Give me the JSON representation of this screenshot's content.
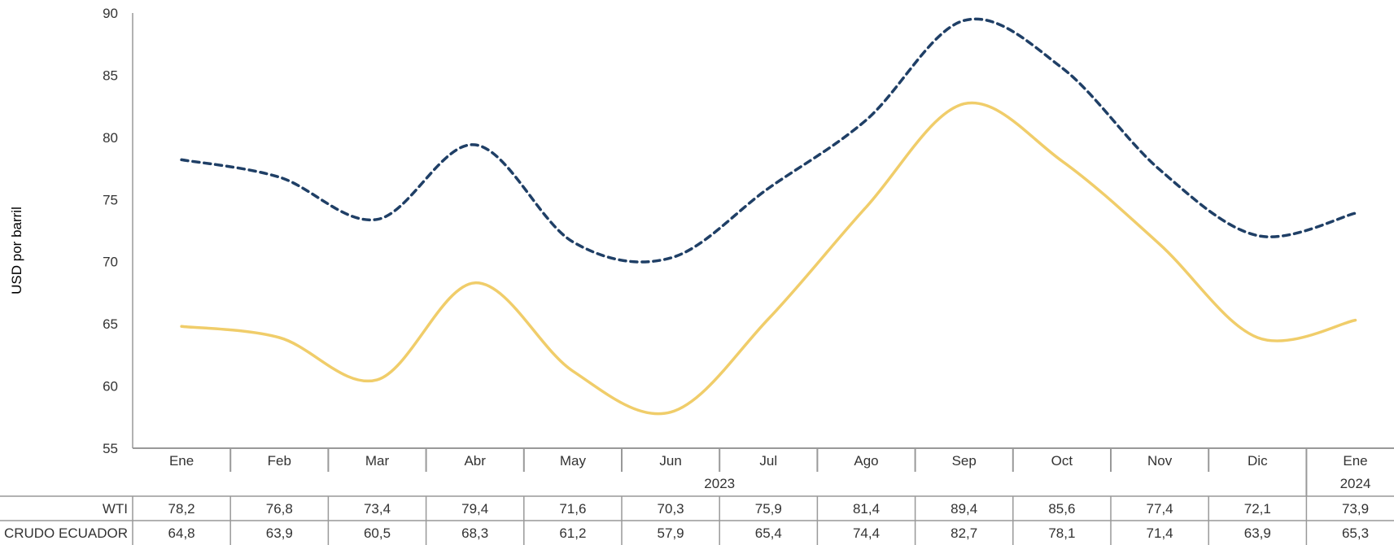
{
  "chart_data": {
    "type": "line",
    "ylabel": "USD por barril",
    "ylim": [
      55,
      90
    ],
    "yticks": [
      55,
      60,
      65,
      70,
      75,
      80,
      85,
      90
    ],
    "categories": [
      "Ene",
      "Feb",
      "Mar",
      "Abr",
      "May",
      "Jun",
      "Jul",
      "Ago",
      "Sep",
      "Oct",
      "Nov",
      "Dic",
      "Ene"
    ],
    "year_groups": [
      {
        "label": "2023",
        "span": 12
      },
      {
        "label": "2024",
        "span": 1
      }
    ],
    "series": [
      {
        "name": "WTI",
        "style": "dashed",
        "color": "#1f3f66",
        "values": [
          78.2,
          76.8,
          73.4,
          79.4,
          71.6,
          70.3,
          75.9,
          81.4,
          89.4,
          85.6,
          77.4,
          72.1,
          73.9
        ],
        "table_values": [
          "78,2",
          "76,8",
          "73,4",
          "79,4",
          "71,6",
          "70,3",
          "75,9",
          "81,4",
          "89,4",
          "85,6",
          "77,4",
          "72,1",
          "73,9"
        ]
      },
      {
        "name": "CRUDO ECUADOR",
        "style": "solid",
        "color": "#f0cd6a",
        "values": [
          64.8,
          63.9,
          60.5,
          68.3,
          61.2,
          57.9,
          65.4,
          74.4,
          82.7,
          78.1,
          71.4,
          63.9,
          65.3
        ],
        "table_values": [
          "64,8",
          "63,9",
          "60,5",
          "68,3",
          "61,2",
          "57,9",
          "65,4",
          "74,4",
          "82,7",
          "78,1",
          "71,4",
          "63,9",
          "65,3"
        ]
      }
    ],
    "grid": false,
    "legend": "none"
  }
}
